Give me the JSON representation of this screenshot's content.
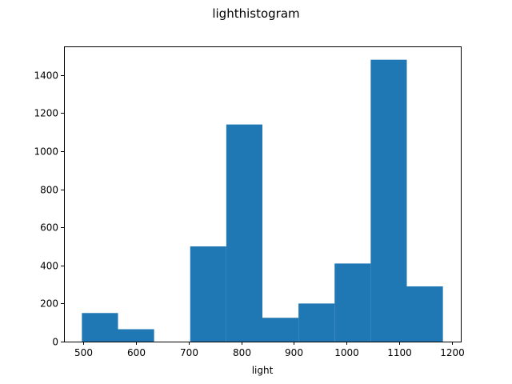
{
  "chart_data": {
    "type": "bar",
    "title": "lighthistogram",
    "xlabel": "light",
    "ylabel": "",
    "bin_edges": [
      497.0,
      565.6,
      634.2,
      702.8,
      771.4,
      840.0,
      908.6,
      977.2,
      1045.8,
      1114.4,
      1183.0
    ],
    "values": [
      150,
      65,
      0,
      500,
      1140,
      125,
      200,
      410,
      1480,
      290
    ],
    "xlim": [
      463,
      1217
    ],
    "ylim": [
      0,
      1550
    ],
    "xticks": [
      500,
      600,
      700,
      800,
      900,
      1000,
      1100,
      1200
    ],
    "xtick_labels": [
      "500",
      "600",
      "700",
      "800",
      "900",
      "1000",
      "1100",
      "1200"
    ],
    "yticks": [
      0,
      200,
      400,
      600,
      800,
      1000,
      1200,
      1400
    ],
    "ytick_labels": [
      "0",
      "200",
      "400",
      "600",
      "800",
      "1000",
      "1200",
      "1400"
    ],
    "bar_color": "#1f77b4",
    "grid": false,
    "legend": false
  }
}
